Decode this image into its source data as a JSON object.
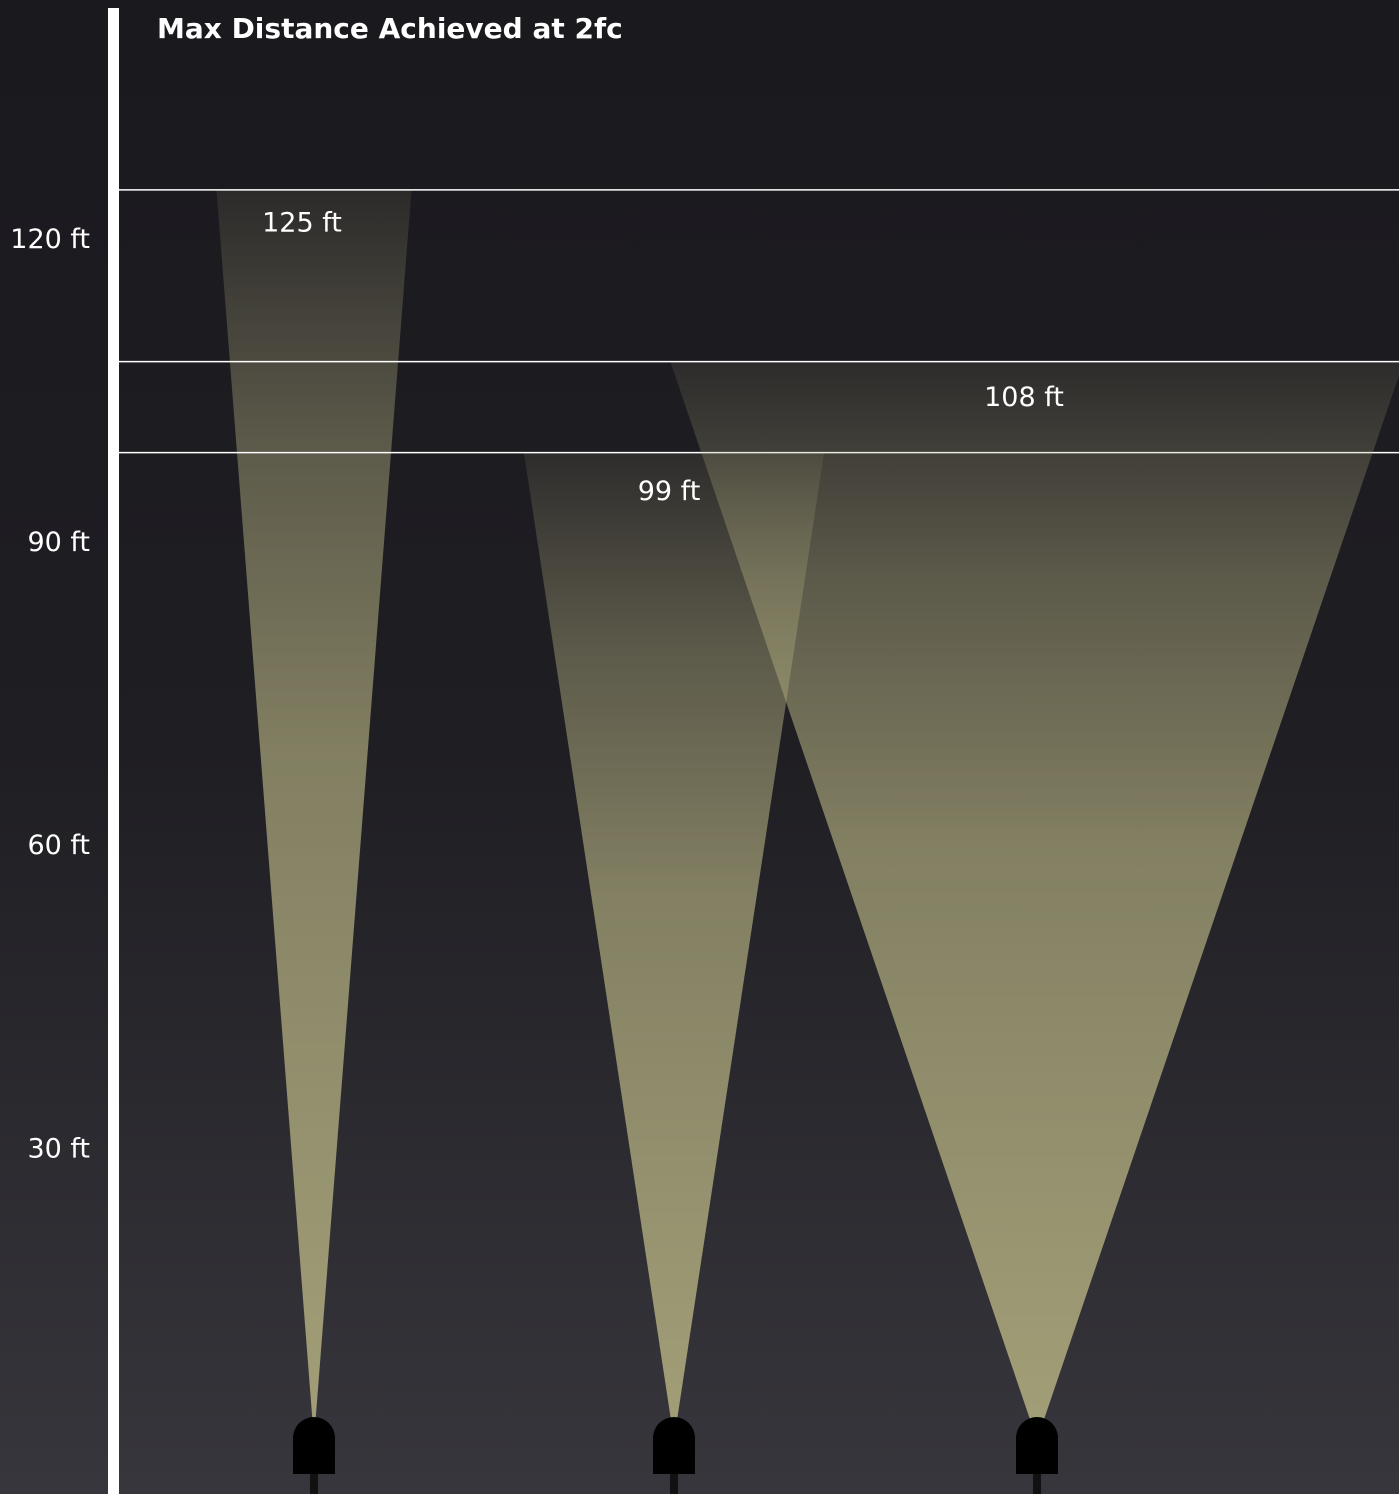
{
  "chart_data": {
    "type": "beam",
    "title": "Max Distance Achieved at 2fc",
    "values": [
      125,
      99,
      108
    ],
    "value_labels": [
      "125 ft",
      "99 ft",
      "108 ft"
    ],
    "color": "#a8a47a",
    "ylim": [
      0,
      143
    ],
    "yticks": [
      {
        "value": 30,
        "label": "30 ft"
      },
      {
        "value": 60,
        "label": "60 ft"
      },
      {
        "value": 90,
        "label": "90 ft"
      },
      {
        "value": 120,
        "label": "120 ft"
      }
    ]
  }
}
